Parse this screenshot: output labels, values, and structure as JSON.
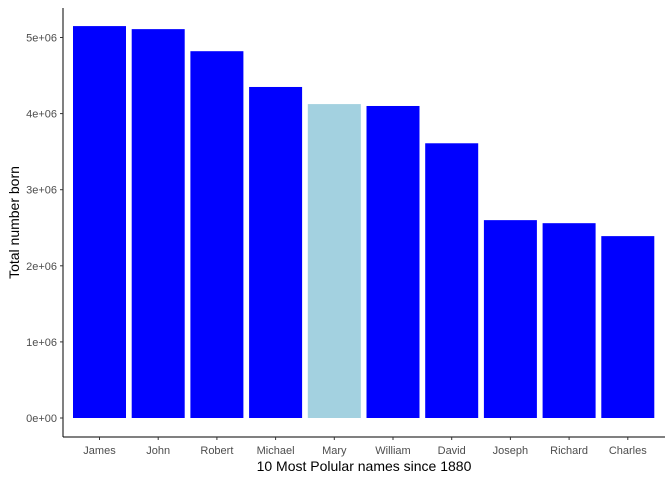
{
  "chart_data": {
    "type": "bar",
    "categories": [
      "James",
      "John",
      "Robert",
      "Michael",
      "Mary",
      "William",
      "David",
      "Joseph",
      "Richard",
      "Charles"
    ],
    "values": [
      5150000,
      5110000,
      4820000,
      4350000,
      4125000,
      4100000,
      3610000,
      2600000,
      2560000,
      2390000
    ],
    "highlight_category": "Mary",
    "colors": {
      "default": "#0000FF",
      "highlight": "#A3D1E0"
    },
    "xlabel": "10 Most Polular names since 1880",
    "ylabel": "Total number born",
    "ylim": [
      0,
      5400000
    ],
    "yticks": [
      0,
      1000000,
      2000000,
      3000000,
      4000000,
      5000000
    ],
    "ytick_labels": [
      "0e+00",
      "1e+06",
      "2e+06",
      "3e+06",
      "4e+06",
      "5e+06"
    ],
    "grid": false,
    "legend": "none"
  }
}
